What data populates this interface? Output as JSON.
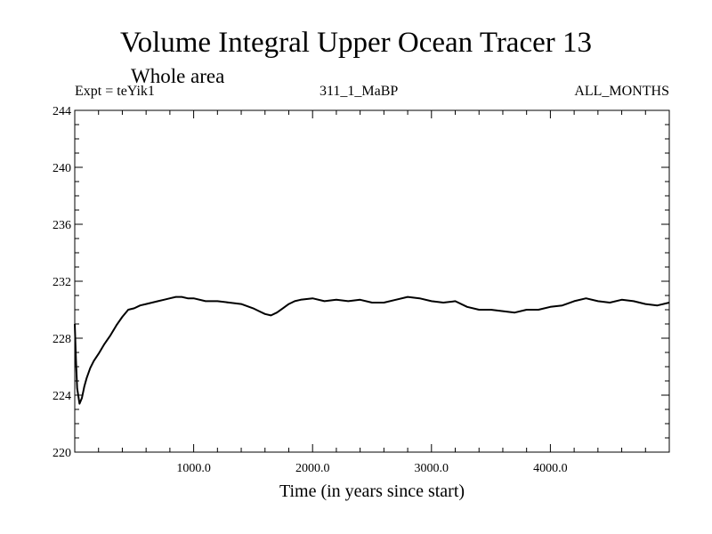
{
  "chart_data": {
    "type": "line",
    "title": "Volume Integral Upper Ocean Tracer 13",
    "subtitle": "Whole area",
    "expt_label": "Expt = teYik1",
    "run_label": "311_1_MaBP",
    "months_label": "ALL_MONTHS",
    "xlabel": "Time (in years since start)",
    "ylabel": "",
    "xlim": [
      0,
      5000
    ],
    "ylim": [
      220,
      244
    ],
    "xticks": [
      1000,
      2000,
      3000,
      4000
    ],
    "xtick_labels": [
      "1000.0",
      "2000.0",
      "3000.0",
      "4000.0"
    ],
    "yticks": [
      220,
      224,
      228,
      232,
      236,
      240,
      244
    ],
    "ytick_labels": [
      "220",
      "224",
      "228",
      "232",
      "236",
      "240",
      "244"
    ],
    "grid": false,
    "series": [
      {
        "name": "Tracer 13",
        "color": "#000000",
        "x": [
          0,
          10,
          20,
          40,
          60,
          80,
          100,
          130,
          160,
          200,
          250,
          300,
          350,
          400,
          450,
          500,
          550,
          600,
          650,
          700,
          750,
          800,
          850,
          900,
          950,
          1000,
          1100,
          1200,
          1300,
          1400,
          1500,
          1550,
          1600,
          1650,
          1700,
          1750,
          1800,
          1850,
          1900,
          2000,
          2100,
          2200,
          2300,
          2400,
          2500,
          2600,
          2700,
          2800,
          2900,
          3000,
          3100,
          3200,
          3300,
          3400,
          3500,
          3600,
          3700,
          3800,
          3900,
          4000,
          4100,
          4200,
          4300,
          4400,
          4500,
          4600,
          4700,
          4800,
          4900,
          5000
        ],
        "values": [
          229.0,
          226.5,
          224.5,
          223.4,
          223.8,
          224.6,
          225.2,
          225.9,
          226.4,
          226.9,
          227.6,
          228.2,
          228.9,
          229.5,
          230.0,
          230.1,
          230.3,
          230.4,
          230.5,
          230.6,
          230.7,
          230.8,
          230.9,
          230.9,
          230.8,
          230.8,
          230.6,
          230.6,
          230.5,
          230.4,
          230.1,
          229.9,
          229.7,
          229.6,
          229.8,
          230.1,
          230.4,
          230.6,
          230.7,
          230.8,
          230.6,
          230.7,
          230.6,
          230.7,
          230.5,
          230.5,
          230.7,
          230.9,
          230.8,
          230.6,
          230.5,
          230.6,
          230.2,
          230.0,
          230.0,
          229.9,
          229.8,
          230.0,
          230.0,
          230.2,
          230.3,
          230.6,
          230.8,
          230.6,
          230.5,
          230.7,
          230.6,
          230.4,
          230.3,
          230.5
        ]
      }
    ]
  }
}
